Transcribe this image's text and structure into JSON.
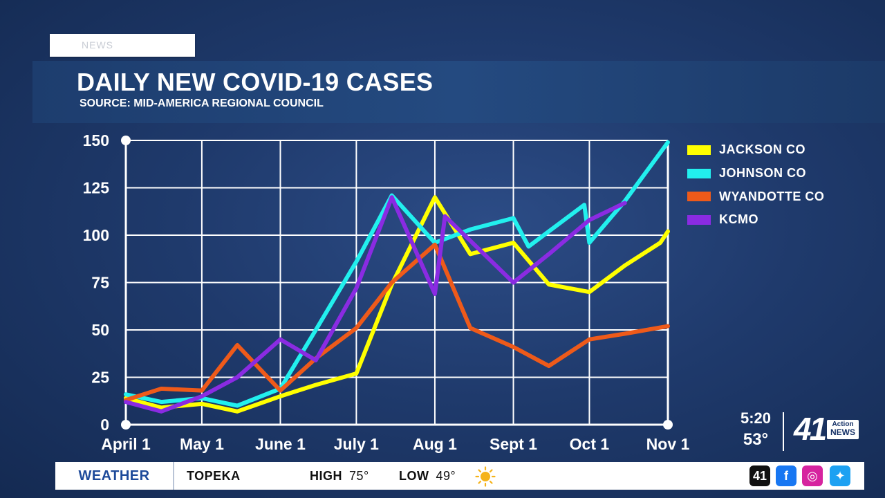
{
  "header": {
    "tag_text": "NEWS",
    "title": "DAILY NEW COVID-19 CASES",
    "subtitle": "SOURCE: MID-AMERICA REGIONAL COUNCIL"
  },
  "chart_data": {
    "type": "line",
    "title": "DAILY NEW COVID-19 CASES",
    "subtitle": "SOURCE: MID-AMERICA REGIONAL COUNCIL",
    "xlabel": "",
    "ylabel": "",
    "ylim": [
      0,
      150
    ],
    "yticks": [
      "0",
      "25",
      "50",
      "75",
      "100",
      "125",
      "150"
    ],
    "xticks": [
      "April 1",
      "May 1",
      "June 1",
      "July 1",
      "Aug 1",
      "Sept 1",
      "Oct 1",
      "Nov 1"
    ],
    "xlim": [
      "April 1",
      "Nov 1"
    ],
    "grid": true,
    "legend_position": "right",
    "series": [
      {
        "name": "JACKSON CO",
        "color": "#ffff00",
        "points": [
          [
            "Apr 1",
            14
          ],
          [
            "Apr 15",
            9
          ],
          [
            "May 1",
            11
          ],
          [
            "May 15",
            7
          ],
          [
            "Jun 1",
            15
          ],
          [
            "Jun 15",
            21
          ],
          [
            "Jul 1",
            27
          ],
          [
            "Jul 15",
            74
          ],
          [
            "Aug 1",
            120
          ],
          [
            "Aug 15",
            90
          ],
          [
            "Sep 1",
            96
          ],
          [
            "Sep 15",
            74
          ],
          [
            "Oct 1",
            70
          ],
          [
            "Oct 15",
            84
          ],
          [
            "Oct 29",
            96
          ],
          [
            "Nov 1",
            102
          ]
        ]
      },
      {
        "name": "JOHNSON CO",
        "color": "#22f0ee",
        "points": [
          [
            "Apr 1",
            16
          ],
          [
            "Apr 15",
            12
          ],
          [
            "May 1",
            14
          ],
          [
            "May 15",
            10
          ],
          [
            "Jun 1",
            19
          ],
          [
            "Jun 15",
            50
          ],
          [
            "Jul 1",
            86
          ],
          [
            "Jul 15",
            121
          ],
          [
            "Aug 1",
            96
          ],
          [
            "Aug 15",
            103
          ],
          [
            "Sep 1",
            109
          ],
          [
            "Sep 7",
            94
          ],
          [
            "Sep 29",
            116
          ],
          [
            "Oct 1",
            96
          ],
          [
            "Oct 15",
            118
          ],
          [
            "Nov 1",
            149
          ]
        ]
      },
      {
        "name": "WYANDOTTE CO",
        "color": "#ee5a1a",
        "points": [
          [
            "Apr 1",
            13
          ],
          [
            "Apr 15",
            19
          ],
          [
            "May 1",
            18
          ],
          [
            "May 15",
            42
          ],
          [
            "Jun 1",
            18
          ],
          [
            "Jun 15",
            35
          ],
          [
            "Jul 1",
            51
          ],
          [
            "Jul 15",
            75
          ],
          [
            "Aug 1",
            95
          ],
          [
            "Aug 15",
            51
          ],
          [
            "Sep 1",
            41
          ],
          [
            "Sep 15",
            31
          ],
          [
            "Oct 1",
            45
          ],
          [
            "Oct 15",
            48
          ],
          [
            "Nov 1",
            52
          ]
        ]
      },
      {
        "name": "KCMO",
        "color": "#8a2be2",
        "points": [
          [
            "Apr 1",
            12
          ],
          [
            "Apr 15",
            7
          ],
          [
            "May 1",
            15
          ],
          [
            "May 15",
            25
          ],
          [
            "Jun 1",
            45
          ],
          [
            "Jun 15",
            34
          ],
          [
            "Jul 1",
            72
          ],
          [
            "Jul 15",
            120
          ],
          [
            "Aug 1",
            69
          ],
          [
            "Aug 5",
            110
          ],
          [
            "Sep 1",
            75
          ],
          [
            "Sep 15",
            90
          ],
          [
            "Oct 1",
            108
          ],
          [
            "Oct 15",
            117
          ]
        ]
      }
    ]
  },
  "legend": [
    {
      "label": "JACKSON CO",
      "color": "#ffff00"
    },
    {
      "label": "JOHNSON CO",
      "color": "#22f0ee"
    },
    {
      "label": "WYANDOTTE CO",
      "color": "#ee5a1a"
    },
    {
      "label": "KCMO",
      "color": "#8a2be2"
    }
  ],
  "clock": {
    "time": "5:20",
    "temp": "53°"
  },
  "logo": {
    "number": "41",
    "line1": "Action",
    "line2": "NEWS"
  },
  "ticker": {
    "section": "WEATHER",
    "city": "TOPEKA",
    "high_label": "HIGH",
    "high_value": "75°",
    "low_label": "LOW",
    "low_value": "49°",
    "icon": "sun-icon"
  },
  "social": [
    {
      "name": "kshb-41-icon",
      "color": "#111111",
      "glyph": "41"
    },
    {
      "name": "facebook-icon",
      "color": "#1877f2",
      "glyph": "f"
    },
    {
      "name": "instagram-icon",
      "color": "#d6249f",
      "glyph": "◎"
    },
    {
      "name": "twitter-icon",
      "color": "#1da1f2",
      "glyph": "✦"
    }
  ]
}
